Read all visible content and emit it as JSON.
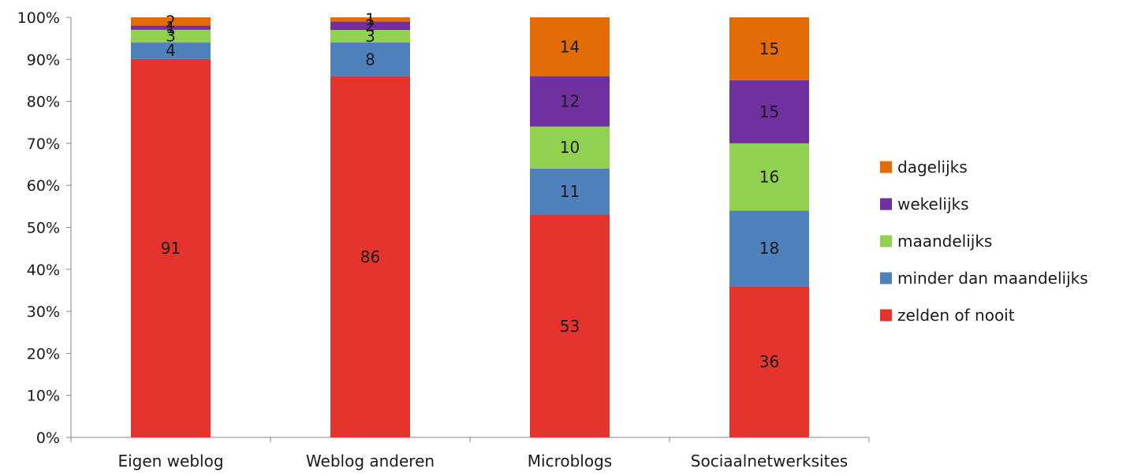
{
  "chart_data": {
    "type": "bar",
    "stacked": true,
    "percent_stacked": true,
    "categories": [
      "Eigen weblog",
      "Weblog anderen",
      "Microblogs",
      "Sociaalnetwerksites"
    ],
    "series": [
      {
        "name": "zelden of nooit",
        "color": "#e5332e",
        "values": [
          91,
          86,
          53,
          36
        ]
      },
      {
        "name": "minder dan maandelijks",
        "color": "#4f81bd",
        "values": [
          4,
          8,
          11,
          18
        ]
      },
      {
        "name": "maandelijks",
        "color": "#92d050",
        "values": [
          3,
          3,
          10,
          16
        ]
      },
      {
        "name": "wekelijks",
        "color": "#7030a0",
        "values": [
          1,
          2,
          12,
          15
        ]
      },
      {
        "name": "dagelijks",
        "color": "#e36c09",
        "values": [
          2,
          1,
          14,
          15
        ]
      }
    ],
    "y_ticks": [
      "0%",
      "10%",
      "20%",
      "30%",
      "40%",
      "50%",
      "60%",
      "70%",
      "80%",
      "90%",
      "100%"
    ],
    "ylim": [
      0,
      100
    ],
    "grid": false,
    "legend_position": "right"
  }
}
